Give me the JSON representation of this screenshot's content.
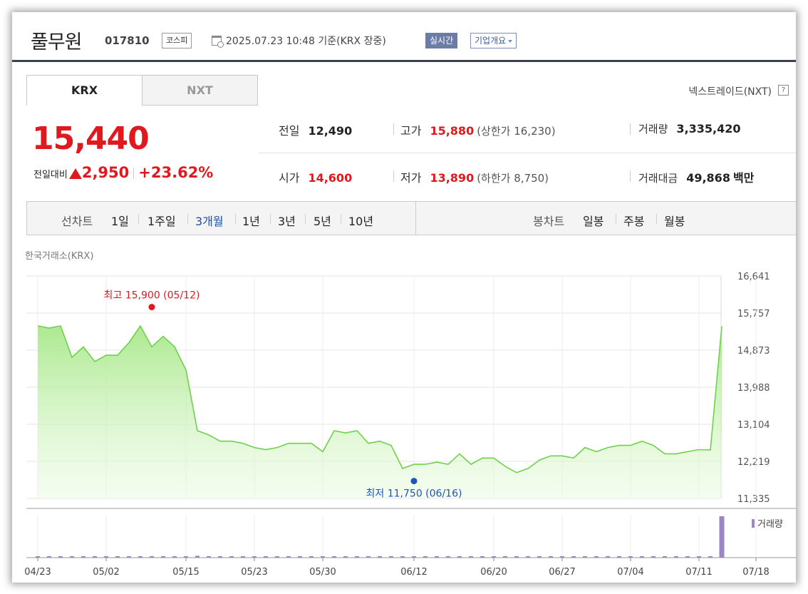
{
  "header": {
    "name": "풀무원",
    "code": "017810",
    "market": "코스피",
    "datetime": "2025.07.23 10:48 기준(KRX 장중)",
    "realtime": "실시간",
    "company_info": "기업개요"
  },
  "tabs": [
    {
      "label": "KRX"
    },
    {
      "label": "NXT"
    }
  ],
  "nxt_link": "넥스트레이드(NXT)",
  "help_glyph": "?",
  "price": {
    "current": "15,440",
    "change_label": "전일대비",
    "change": "2,950",
    "change_pct": "+23.62%"
  },
  "stats": {
    "prev": {
      "label": "전일",
      "value": "12,490"
    },
    "high": {
      "label": "고가",
      "value": "15,880",
      "limit": "(상한가 16,230)"
    },
    "volume": {
      "label": "거래량",
      "value": "3,335,420"
    },
    "open": {
      "label": "시가",
      "value": "14,600"
    },
    "low": {
      "label": "저가",
      "value": "13,890",
      "limit": "(하한가 8,750)"
    },
    "amount": {
      "label": "거래대금",
      "value": "49,868",
      "unit": "백만"
    }
  },
  "period_bar": {
    "line_label": "선차트",
    "line_items": [
      "1일",
      "1주일",
      "3개월",
      "1년",
      "3년",
      "5년",
      "10년"
    ],
    "active": "3개월",
    "candle_label": "봉차트",
    "candle_items": [
      "일봉",
      "주봉",
      "월봉"
    ]
  },
  "colors": {
    "up": "#e0191f",
    "low_marker": "#1e56b8",
    "line": "#6fd14a",
    "volume": "#9a86c9"
  },
  "chart_data": {
    "type": "area",
    "source_label": "한국거래소(KRX)",
    "x_ticks": [
      "04/23",
      "05/02",
      "05/15",
      "05/23",
      "05/30",
      "06/12",
      "06/20",
      "06/27",
      "07/04",
      "07/11",
      "07/18"
    ],
    "y_ticks": [
      16641,
      15757,
      14873,
      13988,
      13104,
      12219,
      11335
    ],
    "ylim": [
      11335,
      16641
    ],
    "grid": true,
    "high_annotation": {
      "text": "최고 15,900 (05/12)",
      "value": 15900,
      "index": 10
    },
    "low_annotation": {
      "text": "최저 11,750 (06/16)",
      "value": 11750,
      "index": 33
    },
    "volume_legend": "거래량",
    "series": [
      {
        "values": [
          15450,
          15400,
          15450,
          14700,
          14950,
          14600,
          14750,
          14750,
          15050,
          15450,
          14950,
          15200,
          14950,
          14400,
          12950,
          12850,
          12700,
          12700,
          12650,
          12550,
          12500,
          12550,
          12650,
          12650,
          12650,
          12450,
          12950,
          12900,
          12950,
          12650,
          12700,
          12600,
          12050,
          12150,
          12150,
          12200,
          12150,
          12400,
          12150,
          12300,
          12300,
          12100,
          11950,
          12050,
          12250,
          12350,
          12350,
          12300,
          12550,
          12450,
          12550,
          12600,
          12600,
          12700,
          12600,
          12400,
          12400,
          12450,
          12500,
          12490,
          15440
        ]
      }
    ],
    "volume": [
      20,
      8,
      15,
      22,
      40,
      25,
      20,
      15,
      12,
      12,
      18,
      22,
      20,
      28,
      150,
      20,
      18,
      16,
      15,
      15,
      15,
      15,
      15,
      22,
      22,
      15,
      15,
      15,
      15,
      15,
      15,
      15,
      35,
      25,
      15,
      15,
      15,
      15,
      15,
      15,
      15,
      15,
      22,
      15,
      22,
      25,
      18,
      15,
      22,
      18,
      15,
      15,
      15,
      15,
      15,
      15,
      22,
      15,
      18,
      15,
      3335
    ]
  }
}
